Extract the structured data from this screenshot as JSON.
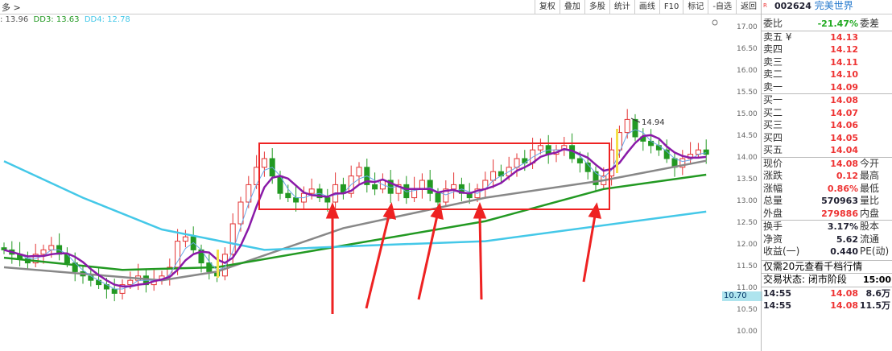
{
  "breadcrumb": "多 >",
  "toolbar": [
    "复权",
    "叠加",
    "多股",
    "统计",
    "画线",
    "F10",
    "标记",
    "-自选",
    "返回"
  ],
  "ma_legend": [
    {
      "label": ": 13.96",
      "color": "#555555"
    },
    {
      "label": "DD3: 13.63",
      "color": "#229922"
    },
    {
      "label": "DD4: 12.78",
      "color": "#44c8e8"
    }
  ],
  "axis_ticks": [
    "17.00",
    "16.50",
    "16.00",
    "15.50",
    "15.00",
    "14.50",
    "14.00",
    "13.50",
    "13.00",
    "12.50",
    "12.00",
    "11.50",
    "11.00",
    "10.50",
    "10.00"
  ],
  "current_price_tag": "10.70",
  "annotation_high": "14.94",
  "stock": {
    "code": "002624",
    "name": "完美世界"
  },
  "weibi": {
    "label": "委比",
    "value": "-21.47%",
    "suffix": "委差"
  },
  "asks": [
    {
      "label": "卖五 ¥",
      "price": "14.13"
    },
    {
      "label": "卖四",
      "price": "14.12"
    },
    {
      "label": "卖三",
      "price": "14.11"
    },
    {
      "label": "卖二",
      "price": "14.10"
    },
    {
      "label": "卖一",
      "price": "14.09"
    }
  ],
  "bids": [
    {
      "label": "买一",
      "price": "14.08"
    },
    {
      "label": "买二",
      "price": "14.07"
    },
    {
      "label": "买三",
      "price": "14.06"
    },
    {
      "label": "买四",
      "price": "14.05"
    },
    {
      "label": "买五",
      "price": "14.04"
    }
  ],
  "quote": [
    {
      "label": "现价",
      "value": "14.08",
      "suffix": "今开",
      "c": "red"
    },
    {
      "label": "涨跌",
      "value": "0.12",
      "suffix": "最高",
      "c": "red"
    },
    {
      "label": "涨幅",
      "value": "0.86%",
      "suffix": "最低",
      "c": "red"
    },
    {
      "label": "总量",
      "value": "570963",
      "suffix": "量比",
      "c": "blk"
    },
    {
      "label": "外盘",
      "value": "279886",
      "suffix": "内盘",
      "c": "red"
    }
  ],
  "stats": [
    {
      "label": "换手",
      "value": "3.17%",
      "suffix": "股本"
    },
    {
      "label": "净资",
      "value": "5.62",
      "suffix": "流通"
    },
    {
      "label": "收益(一)",
      "value": "0.440",
      "suffix": "PE(动)"
    }
  ],
  "promo": "仅需20元查看千档行情",
  "trade_status": {
    "label": "交易状态: 闭市阶段",
    "time": "15:00"
  },
  "ticks": [
    {
      "time": "14:55",
      "price": "14.08",
      "vol": "8.6万"
    },
    {
      "time": "14:55",
      "price": "14.08",
      "vol": "11.5万"
    }
  ],
  "chart_data": {
    "type": "candlestick",
    "ylim": [
      10.0,
      17.0
    ],
    "closes": [
      11.9,
      11.8,
      11.7,
      11.6,
      11.8,
      11.9,
      12.0,
      11.8,
      11.6,
      11.4,
      11.3,
      11.2,
      11.1,
      11.0,
      10.9,
      11.1,
      11.2,
      11.3,
      11.1,
      11.2,
      11.3,
      11.5,
      12.1,
      12.2,
      11.9,
      11.6,
      11.4,
      11.3,
      11.8,
      12.5,
      13.0,
      13.4,
      13.8,
      14.0,
      13.6,
      13.2,
      13.1,
      13.0,
      13.2,
      13.3,
      13.1,
      13.0,
      13.4,
      13.2,
      13.6,
      13.8,
      13.4,
      13.3,
      13.5,
      13.2,
      13.4,
      13.1,
      13.3,
      13.5,
      13.2,
      13.0,
      13.3,
      13.4,
      13.2,
      13.1,
      13.3,
      13.5,
      13.7,
      13.6,
      13.8,
      14.0,
      13.9,
      14.2,
      14.3,
      14.1,
      14.2,
      14.3,
      14.0,
      13.9,
      13.7,
      13.4,
      13.6,
      14.2,
      14.6,
      14.9,
      14.5,
      14.4,
      14.3,
      14.2,
      14.0,
      13.8,
      14.0,
      14.1,
      14.2,
      14.1
    ],
    "lines": [
      {
        "color": "#888888",
        "points": [
          [
            0,
            11.5
          ],
          [
            20,
            11.2
          ],
          [
            27,
            11.4
          ],
          [
            43,
            12.4
          ],
          [
            61,
            13.1
          ],
          [
            76,
            13.5
          ],
          [
            89,
            13.95
          ]
        ]
      },
      {
        "color": "#229922",
        "points": [
          [
            0,
            11.72
          ],
          [
            15,
            11.44
          ],
          [
            27,
            11.5
          ],
          [
            43,
            12.0
          ],
          [
            61,
            12.56
          ],
          [
            76,
            13.3
          ],
          [
            89,
            13.63
          ]
        ]
      },
      {
        "color": "#44c8e8",
        "points": [
          [
            0,
            13.94
          ],
          [
            10,
            13.1
          ],
          [
            20,
            12.37
          ],
          [
            33,
            11.9
          ],
          [
            46,
            12.0
          ],
          [
            61,
            12.1
          ],
          [
            89,
            12.78
          ]
        ]
      }
    ],
    "up_color": "#e33333",
    "down_color": "#229922"
  }
}
